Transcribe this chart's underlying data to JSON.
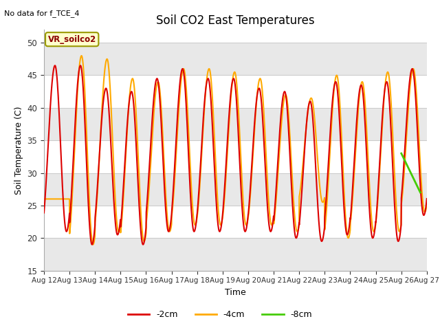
{
  "title": "Soil CO2 East Temperatures",
  "top_left_text": "No data for f_TCE_4",
  "xlabel": "Time",
  "ylabel": "Soil Temperature (C)",
  "ylim": [
    15,
    52
  ],
  "yticks": [
    15,
    20,
    25,
    30,
    35,
    40,
    45,
    50
  ],
  "date_labels": [
    "Aug 12",
    "Aug 13",
    "Aug 14",
    "Aug 15",
    "Aug 16",
    "Aug 17",
    "Aug 18",
    "Aug 19",
    "Aug 20",
    "Aug 21",
    "Aug 22",
    "Aug 23",
    "Aug 24",
    "Aug 25",
    "Aug 26",
    "Aug 27"
  ],
  "legend_label_box": "VR_soilco2",
  "color_2cm": "#dd0000",
  "color_4cm": "#ffaa00",
  "color_8cm": "#44cc00",
  "legend_labels": [
    "-2cm",
    "-4cm",
    "-8cm"
  ],
  "bg_color": "#ffffff",
  "band_colors": [
    "#e8e8e8",
    "#ffffff"
  ],
  "peaks_2cm": [
    46.5,
    46.5,
    43.0,
    42.5,
    44.5,
    46.0,
    44.5,
    44.5,
    43.0,
    42.5,
    41.0,
    44.0,
    43.5,
    44.0,
    46.0
  ],
  "troughs_2cm": [
    21.0,
    19.0,
    20.5,
    19.0,
    21.0,
    21.0,
    21.0,
    21.0,
    21.0,
    20.0,
    19.5,
    20.5,
    20.0,
    19.5,
    23.5
  ],
  "peaks_4cm": [
    26.0,
    48.0,
    47.5,
    44.5,
    44.0,
    46.0,
    46.0,
    45.5,
    44.5,
    42.0,
    41.5,
    45.0,
    44.0,
    45.5,
    46.0
  ],
  "troughs_4cm": [
    26.0,
    19.0,
    21.0,
    19.5,
    21.0,
    22.0,
    22.0,
    22.0,
    22.0,
    21.0,
    25.5,
    20.0,
    21.0,
    21.0,
    24.0
  ],
  "phase_shift_4cm": 0.08,
  "phase_shift_2cm": 0.12
}
